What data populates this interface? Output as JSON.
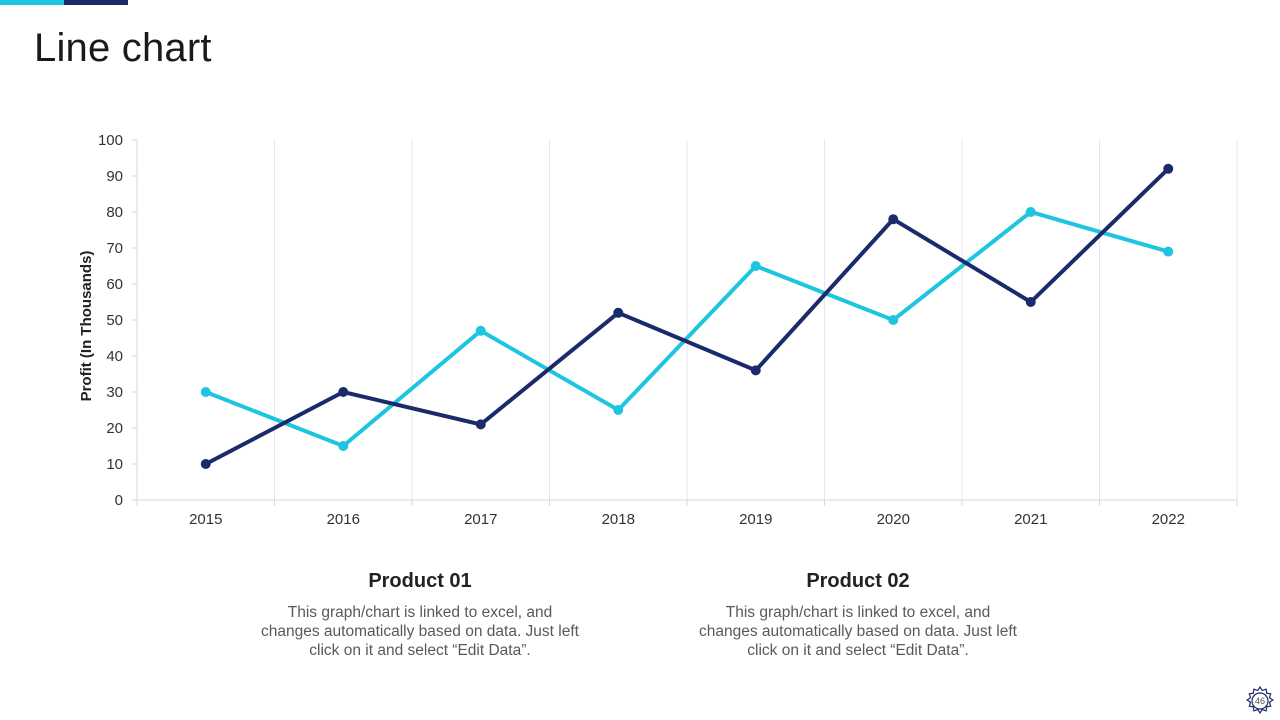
{
  "page": {
    "title": "Line chart",
    "page_number": "46"
  },
  "colors": {
    "product_01": "#1ec5e0",
    "product_02": "#1b2a6b",
    "grid": "#e6e6ef",
    "axis": "#d9d9d9"
  },
  "legend": [
    {
      "title": "Product 01",
      "description": "This graph/chart is linked to excel, and changes automatically based on data. Just left click on it and select “Edit Data”."
    },
    {
      "title": "Product 02",
      "description": "This graph/chart is linked to excel, and changes automatically based on data. Just left click on it and select “Edit Data”."
    }
  ],
  "chart_data": {
    "type": "line",
    "title": "",
    "xlabel": "",
    "ylabel": "Profit (In Thousands)",
    "categories": [
      "2015",
      "2016",
      "2017",
      "2018",
      "2019",
      "2020",
      "2021",
      "2022"
    ],
    "ylim": [
      0,
      100
    ],
    "yticks": [
      0,
      10,
      20,
      30,
      40,
      50,
      60,
      70,
      80,
      90,
      100
    ],
    "grid": "vertical",
    "series": [
      {
        "name": "Product 01",
        "color": "#1ec5e0",
        "values": [
          30,
          15,
          47,
          25,
          65,
          50,
          80,
          69
        ]
      },
      {
        "name": "Product 02",
        "color": "#1b2a6b",
        "values": [
          10,
          30,
          21,
          52,
          36,
          78,
          55,
          92
        ]
      }
    ]
  }
}
